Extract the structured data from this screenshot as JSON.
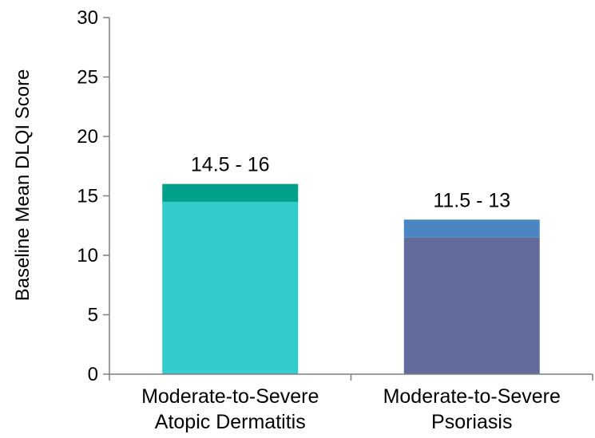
{
  "chart_data": {
    "type": "bar",
    "title": "",
    "xlabel": "",
    "ylabel": "Baseline Mean DLQI Score",
    "ylim": [
      0,
      30
    ],
    "yticks": [
      0,
      5,
      10,
      15,
      20,
      25,
      30
    ],
    "grid": false,
    "legend": "none",
    "categories": [
      [
        "Moderate-to-Severe",
        "Atopic Dermatitis"
      ],
      [
        "Moderate-to-Severe",
        "Psoriasis"
      ]
    ],
    "bars": [
      {
        "low": 14.5,
        "high": 16,
        "label": "14.5 - 16",
        "base_color": "#33CCCC",
        "range_color": "#00A08A"
      },
      {
        "low": 11.5,
        "high": 13,
        "label": "11.5 - 13",
        "base_color": "#636B9B",
        "range_color": "#4A86C3"
      }
    ]
  }
}
